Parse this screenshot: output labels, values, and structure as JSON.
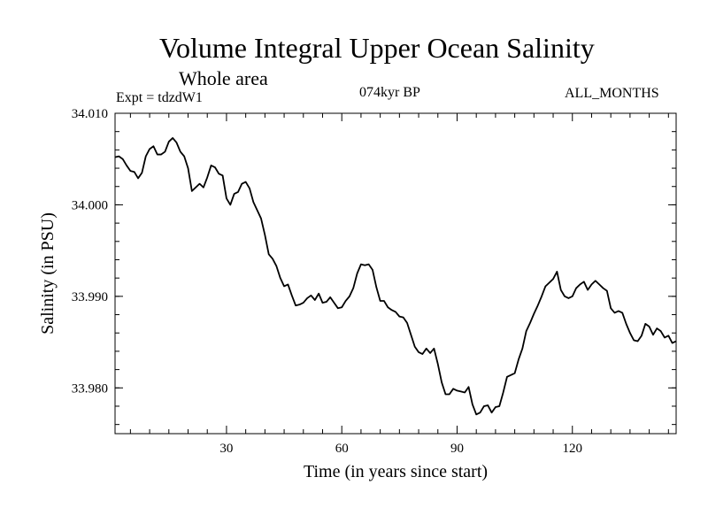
{
  "chart_data": {
    "type": "line",
    "title": "Volume Integral Upper Ocean Salinity",
    "subtitle": "Whole area",
    "experiment_label": "Expt = tdzdW1",
    "period_label": "074kyr BP",
    "months_label": "ALL_MONTHS",
    "xlabel": "Time (in years since start)",
    "ylabel": "Salinity (in PSU)",
    "xlim": [
      1,
      147
    ],
    "ylim": [
      33.975,
      34.01
    ],
    "x_ticks": [
      30,
      60,
      90,
      120
    ],
    "x_tick_labels": [
      "30",
      "60",
      "90",
      "120"
    ],
    "y_ticks": [
      33.98,
      33.99,
      34.0,
      34.01
    ],
    "y_tick_labels": [
      "33.980",
      "33.990",
      "34.000",
      "34.010"
    ],
    "series": [
      {
        "name": "salinity",
        "x": [
          1,
          2,
          3,
          4,
          5,
          6,
          7,
          8,
          9,
          10,
          11,
          12,
          13,
          14,
          15,
          16,
          17,
          18,
          19,
          20,
          21,
          22,
          23,
          24,
          25,
          26,
          27,
          28,
          29,
          30,
          31,
          32,
          33,
          34,
          35,
          36,
          37,
          38,
          39,
          40,
          41,
          42,
          43,
          44,
          45,
          46,
          47,
          48,
          49,
          50,
          51,
          52,
          53,
          54,
          55,
          56,
          57,
          58,
          59,
          60,
          61,
          62,
          63,
          64,
          65,
          66,
          67,
          68,
          69,
          70,
          71,
          72,
          73,
          74,
          75,
          76,
          77,
          78,
          79,
          80,
          81,
          82,
          83,
          84,
          85,
          86,
          87,
          88,
          89,
          90,
          91,
          92,
          93,
          94,
          95,
          96,
          97,
          98,
          99,
          100,
          101,
          102,
          103,
          104,
          105,
          106,
          107,
          108,
          109,
          110,
          111,
          112,
          113,
          114,
          115,
          116,
          117,
          118,
          119,
          120,
          121,
          122,
          123,
          124,
          125,
          126,
          127,
          128,
          129,
          130,
          131,
          132,
          133,
          134,
          135,
          136,
          137,
          138,
          139,
          140,
          141,
          142,
          143,
          144,
          145,
          146,
          147
        ],
        "values": [
          34.0052,
          34.0053,
          34.005,
          34.0043,
          34.0037,
          34.0036,
          34.0029,
          34.0035,
          34.0053,
          34.0061,
          34.0064,
          34.0055,
          34.0055,
          34.0058,
          34.0069,
          34.0073,
          34.0068,
          34.0058,
          34.0053,
          34.004,
          34.0015,
          34.0019,
          34.0023,
          34.0019,
          34.003,
          34.0043,
          34.0041,
          34.0034,
          34.0032,
          34.0007,
          34.0,
          34.0012,
          34.0014,
          34.0023,
          34.0025,
          34.0018,
          34.0003,
          33.9994,
          33.9985,
          33.9967,
          33.9946,
          33.9941,
          33.9933,
          33.992,
          33.9911,
          33.9913,
          33.9901,
          33.989,
          33.9891,
          33.9893,
          33.9898,
          33.9901,
          33.9896,
          33.9903,
          33.9893,
          33.9894,
          33.9899,
          33.9893,
          33.9887,
          33.9888,
          33.9895,
          33.99,
          33.9909,
          33.9925,
          33.9935,
          33.9934,
          33.9935,
          33.9929,
          33.991,
          33.9895,
          33.9895,
          33.9888,
          33.9885,
          33.9883,
          33.9878,
          33.9877,
          33.9871,
          33.9858,
          33.9845,
          33.9839,
          33.9837,
          33.9843,
          33.9838,
          33.9843,
          33.9826,
          33.9806,
          33.9793,
          33.9793,
          33.9799,
          33.9797,
          33.9796,
          33.9795,
          33.9801,
          33.9782,
          33.9771,
          33.9773,
          33.978,
          33.9781,
          33.9773,
          33.9779,
          33.978,
          33.9795,
          33.9812,
          33.9814,
          33.9816,
          33.9831,
          33.9843,
          33.9862,
          33.9871,
          33.9881,
          33.989,
          33.99,
          33.9911,
          33.9915,
          33.9919,
          33.9927,
          33.9907,
          33.99,
          33.9898,
          33.99,
          33.9909,
          33.9913,
          33.9916,
          33.9907,
          33.9913,
          33.9917,
          33.9913,
          33.9909,
          33.9906,
          33.9887,
          33.9882,
          33.9884,
          33.9882,
          33.987,
          33.986,
          33.9852,
          33.9851,
          33.9857,
          33.987,
          33.9867,
          33.9858,
          33.9865,
          33.9862,
          33.9855,
          33.9857,
          33.9849,
          33.9851
        ]
      }
    ]
  }
}
